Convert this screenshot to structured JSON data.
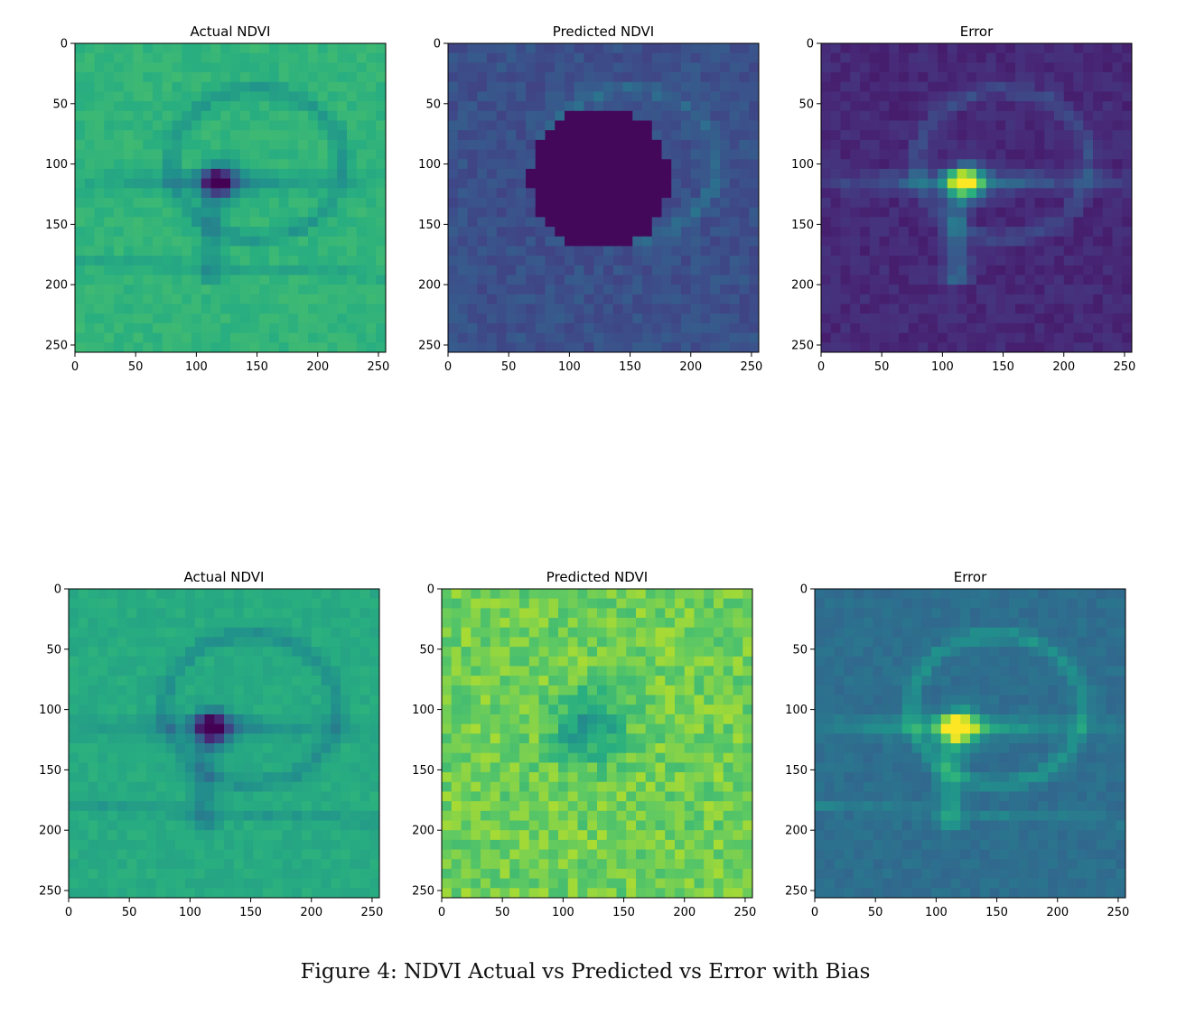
{
  "caption": "Figure 4: NDVI Actual vs Predicted vs Error with Bias",
  "colormap": "viridis",
  "colors": {
    "viridis_dark": "#440154",
    "viridis_blue": "#3b528b",
    "viridis_teal": "#21918c",
    "viridis_green": "#5ec962",
    "viridis_yellow": "#fde725"
  },
  "chart_data": [
    {
      "type": "heatmap",
      "title": "Actual NDVI",
      "row": 1,
      "x_ticks": [
        0,
        50,
        100,
        150,
        200,
        250
      ],
      "y_ticks": [
        0,
        50,
        100,
        150,
        200,
        250
      ],
      "xlim": [
        0,
        256
      ],
      "ylim": [
        256,
        0
      ],
      "scene": "actual",
      "background_level": 0.62
    },
    {
      "type": "heatmap",
      "title": "Predicted NDVI",
      "row": 1,
      "x_ticks": [
        0,
        50,
        100,
        150,
        200,
        250
      ],
      "y_ticks": [
        0,
        50,
        100,
        150,
        200,
        250
      ],
      "xlim": [
        0,
        256
      ],
      "ylim": [
        256,
        0
      ],
      "scene": "predicted_hole",
      "background_level": 0.2
    },
    {
      "type": "heatmap",
      "title": "Error",
      "row": 1,
      "x_ticks": [
        0,
        50,
        100,
        150,
        200,
        250
      ],
      "y_ticks": [
        0,
        50,
        100,
        150,
        200,
        250
      ],
      "xlim": [
        0,
        256
      ],
      "ylim": [
        256,
        0
      ],
      "scene": "error",
      "background_level": 0.08
    },
    {
      "type": "heatmap",
      "title": "Actual NDVI",
      "row": 2,
      "x_ticks": [
        0,
        50,
        100,
        150,
        200,
        250
      ],
      "y_ticks": [
        0,
        50,
        100,
        150,
        200,
        250
      ],
      "xlim": [
        0,
        256
      ],
      "ylim": [
        256,
        0
      ],
      "scene": "actual",
      "background_level": 0.58
    },
    {
      "type": "heatmap",
      "title": "Predicted NDVI",
      "row": 2,
      "x_ticks": [
        0,
        50,
        100,
        150,
        200,
        250
      ],
      "y_ticks": [
        0,
        50,
        100,
        150,
        200,
        250
      ],
      "xlim": [
        0,
        256
      ],
      "ylim": [
        256,
        0
      ],
      "scene": "predicted_bias",
      "background_level": 0.78
    },
    {
      "type": "heatmap",
      "title": "Error",
      "row": 2,
      "x_ticks": [
        0,
        50,
        100,
        150,
        200,
        250
      ],
      "y_ticks": [
        0,
        50,
        100,
        150,
        200,
        250
      ],
      "xlim": [
        0,
        256
      ],
      "ylim": [
        256,
        0
      ],
      "scene": "error_bias",
      "background_level": 0.33
    }
  ]
}
